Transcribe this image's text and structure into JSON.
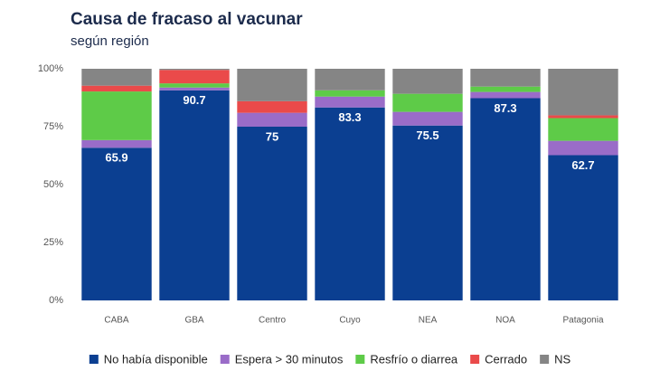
{
  "chart_data": {
    "type": "stacked_bar",
    "title": "Causa de fracaso al vacunar",
    "subtitle": "según región",
    "categories": [
      "CABA",
      "GBA",
      "Centro",
      "Cuyo",
      "NEA",
      "NOA",
      "Patagonia"
    ],
    "series": [
      {
        "name": "No había disponible",
        "color": "#0b3f91",
        "values": [
          65.9,
          90.7,
          75,
          83.3,
          75.5,
          87.3,
          62.7
        ],
        "data_labels": true
      },
      {
        "name": "Espera > 30 minutos",
        "color": "#9a6cc8",
        "values": [
          3.3,
          1.2,
          6,
          4.7,
          5.9,
          2.7,
          6.2
        ]
      },
      {
        "name": "Resfrío o diarrea",
        "color": "#5ecb48",
        "values": [
          21,
          1.8,
          0,
          2.7,
          7.8,
          2.3,
          9.8
        ]
      },
      {
        "name": "Cerrado",
        "color": "#ea4a4a",
        "values": [
          2.5,
          5.8,
          5,
          0,
          0,
          0,
          1.2
        ]
      },
      {
        "name": "NS",
        "color": "#858585",
        "values": [
          7.3,
          0.5,
          14,
          9.3,
          10.8,
          7.7,
          20.1
        ]
      }
    ],
    "ylim": [
      0,
      100
    ],
    "yticks": [
      {
        "value": 0,
        "label": "0%"
      },
      {
        "value": 25,
        "label": "25%"
      },
      {
        "value": 50,
        "label": "50%"
      },
      {
        "value": 75,
        "label": "75%"
      },
      {
        "value": 100,
        "label": "100%"
      }
    ]
  }
}
